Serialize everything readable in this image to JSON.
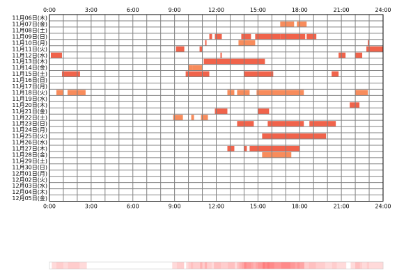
{
  "chart_data": {
    "type": "heatmap",
    "title": "",
    "xlabel": "",
    "ylabel": "",
    "x_unit": "hour",
    "xlim": [
      0,
      24
    ],
    "x_ticks": [
      "0:00",
      "3:00",
      "6:00",
      "9:00",
      "12:00",
      "15:00",
      "18:00",
      "21:00",
      "24:00"
    ],
    "grid": true,
    "colors": {
      "dark": "#f0634b",
      "light": "#f88c5c",
      "grid": "#808080",
      "border": "#000000"
    },
    "days": [
      {
        "label": "11月06日(木)",
        "bars": []
      },
      {
        "label": "11月07日(金)",
        "bars": [
          [
            16.6,
            17.6,
            "light"
          ],
          [
            17.8,
            18.5,
            "light"
          ]
        ]
      },
      {
        "label": "11月08日(土)",
        "bars": []
      },
      {
        "label": "11月09日(日)",
        "bars": [
          [
            11.5,
            11.7,
            "dark"
          ],
          [
            11.9,
            12.4,
            "dark"
          ],
          [
            13.8,
            14.5,
            "dark"
          ],
          [
            14.8,
            16.6,
            "dark"
          ],
          [
            16.6,
            18.4,
            "dark"
          ],
          [
            18.5,
            19.2,
            "dark"
          ]
        ]
      },
      {
        "label": "11月10日(月)",
        "bars": [
          [
            11.2,
            11.3,
            "dark"
          ],
          [
            13.6,
            14.8,
            "light"
          ],
          [
            22.9,
            23.0,
            "dark"
          ]
        ]
      },
      {
        "label": "11月11日(火)",
        "bars": [
          [
            9.1,
            9.7,
            "dark"
          ],
          [
            10.8,
            11.0,
            "dark"
          ],
          [
            22.8,
            24.0,
            "dark"
          ]
        ]
      },
      {
        "label": "11月12日(水)",
        "bars": [
          [
            0.1,
            0.9,
            "dark"
          ],
          [
            12.3,
            12.4,
            "dark"
          ],
          [
            20.8,
            21.3,
            "dark"
          ],
          [
            22.0,
            22.5,
            "dark"
          ]
        ]
      },
      {
        "label": "11月13日(木)",
        "bars": [
          [
            11.1,
            15.5,
            "dark"
          ]
        ]
      },
      {
        "label": "11月14日(金)",
        "bars": [
          [
            10.0,
            10.3,
            "light"
          ],
          [
            10.3,
            11.0,
            "light"
          ]
        ]
      },
      {
        "label": "11月15日(土)",
        "bars": [
          [
            0.9,
            2.2,
            "dark"
          ],
          [
            9.8,
            11.5,
            "dark"
          ],
          [
            14.0,
            16.1,
            "dark"
          ],
          [
            20.3,
            20.8,
            "dark"
          ]
        ]
      },
      {
        "label": "11月16日(日)",
        "bars": []
      },
      {
        "label": "11月17日(月)",
        "bars": []
      },
      {
        "label": "11月18日(火)",
        "bars": [
          [
            0.5,
            1.0,
            "light"
          ],
          [
            1.3,
            2.6,
            "light"
          ],
          [
            12.8,
            13.3,
            "light"
          ],
          [
            13.5,
            14.4,
            "light"
          ],
          [
            14.9,
            18.3,
            "light"
          ],
          [
            22.0,
            22.9,
            "light"
          ]
        ]
      },
      {
        "label": "11月19日(水)",
        "bars": []
      },
      {
        "label": "11月20日(木)",
        "bars": [
          [
            21.6,
            22.3,
            "dark"
          ]
        ]
      },
      {
        "label": "11月21日(金)",
        "bars": [
          [
            11.9,
            12.8,
            "dark"
          ],
          [
            15.0,
            15.8,
            "dark"
          ]
        ]
      },
      {
        "label": "11月22日(土)",
        "bars": [
          [
            8.9,
            9.6,
            "light"
          ],
          [
            10.2,
            10.4,
            "light"
          ],
          [
            10.9,
            11.4,
            "light"
          ]
        ]
      },
      {
        "label": "11月23日(日)",
        "bars": [
          [
            13.5,
            14.7,
            "dark"
          ],
          [
            15.7,
            18.3,
            "dark"
          ],
          [
            18.7,
            20.6,
            "dark"
          ]
        ]
      },
      {
        "label": "11月24日(月)",
        "bars": []
      },
      {
        "label": "11月25日(火)",
        "bars": [
          [
            15.3,
            18.0,
            "dark"
          ],
          [
            18.0,
            19.9,
            "dark"
          ]
        ]
      },
      {
        "label": "11月26日(水)",
        "bars": []
      },
      {
        "label": "11月27日(木)",
        "bars": [
          [
            12.8,
            13.3,
            "dark"
          ],
          [
            14.0,
            14.2,
            "dark"
          ],
          [
            14.4,
            18.0,
            "dark"
          ]
        ]
      },
      {
        "label": "11月28日(金)",
        "bars": [
          [
            15.3,
            17.4,
            "light"
          ]
        ]
      },
      {
        "label": "11月29日(土)",
        "bars": []
      },
      {
        "label": "11月30日(日)",
        "bars": []
      },
      {
        "label": "12月01日(月)",
        "bars": []
      },
      {
        "label": "12月02日(火)",
        "bars": []
      },
      {
        "label": "12月03日(水)",
        "bars": []
      },
      {
        "label": "12月04日(木)",
        "bars": []
      },
      {
        "label": "12月05日(金)",
        "bars": []
      }
    ]
  }
}
